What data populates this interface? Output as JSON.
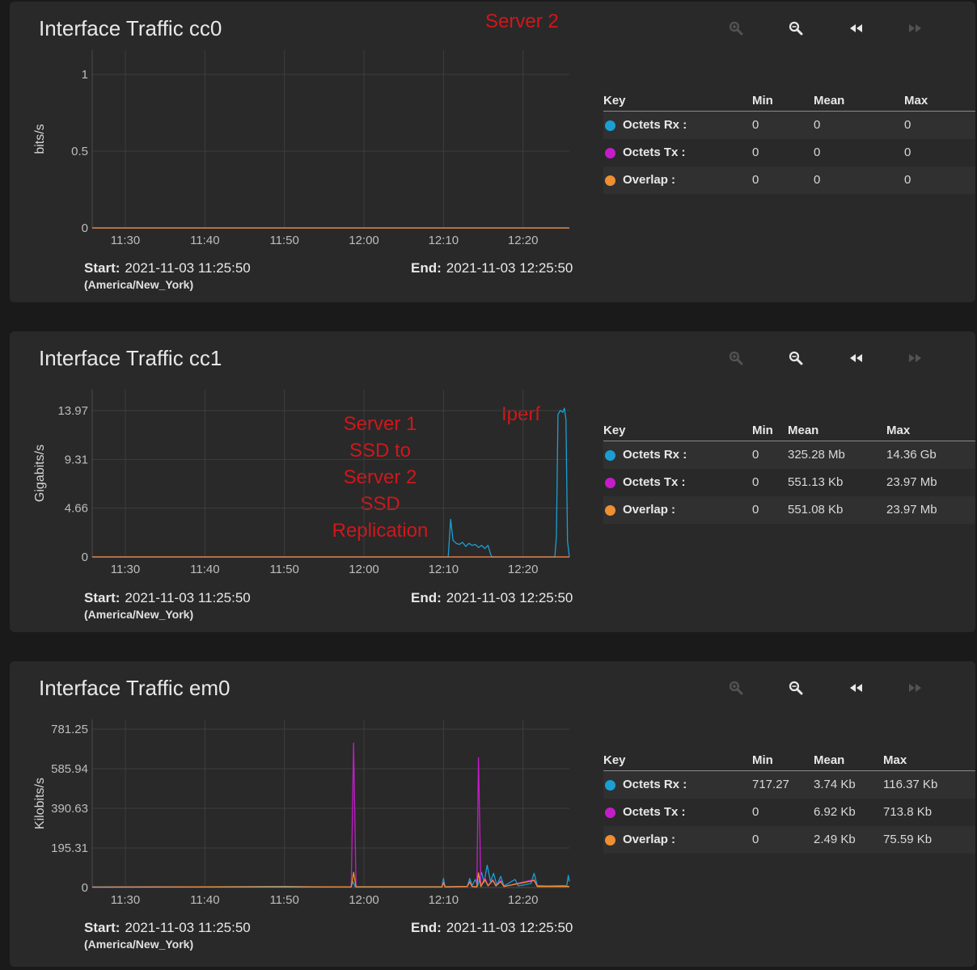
{
  "toolbar": {
    "icons": [
      "zoom-in-icon",
      "zoom-out-icon",
      "step-back-icon",
      "step-forward-icon"
    ]
  },
  "colors": {
    "card": "#292929",
    "rx": "#1a9fd4",
    "tx": "#c41cc9",
    "overlap": "#ef8f31",
    "annotation": "#d0171b"
  },
  "legend_header": {
    "key": "Key",
    "min": "Min",
    "mean": "Mean",
    "max": "Max"
  },
  "labels": {
    "start": "Start:",
    "end": "End:"
  },
  "charts": [
    {
      "title": "Interface Traffic cc0",
      "ylabel": "bits/s",
      "start": "2021-11-03 11:25:50",
      "timezone": "(America/New_York)",
      "end": "2021-11-03 12:25:50",
      "legend": [
        {
          "name": "Octets Rx :",
          "min": "0",
          "mean": "0",
          "max": "0"
        },
        {
          "name": "Octets Tx :",
          "min": "0",
          "mean": "0",
          "max": "0"
        },
        {
          "name": "Overlap :",
          "min": "0",
          "mean": "0",
          "max": "0"
        }
      ],
      "annotations": [
        "Server 2"
      ]
    },
    {
      "title": "Interface Traffic cc1",
      "ylabel": "Gigabits/s",
      "start": "2021-11-03 11:25:50",
      "timezone": "(America/New_York)",
      "end": "2021-11-03 12:25:50",
      "legend": [
        {
          "name": "Octets Rx :",
          "min": "0",
          "mean": "325.28 Mb",
          "max": "14.36 Gb"
        },
        {
          "name": "Octets Tx :",
          "min": "0",
          "mean": "551.13 Kb",
          "max": "23.97 Mb"
        },
        {
          "name": "Overlap :",
          "min": "0",
          "mean": "551.08 Kb",
          "max": "23.97 Mb"
        }
      ],
      "annotations": [
        "Server 1\nSSD to\nServer 2\nSSD\nReplication",
        "Iperf"
      ]
    },
    {
      "title": "Interface Traffic em0",
      "ylabel": "Kilobits/s",
      "start": "2021-11-03 11:25:50",
      "timezone": "(America/New_York)",
      "end": "2021-11-03 12:25:50",
      "legend": [
        {
          "name": "Octets Rx :",
          "min": "717.27",
          "mean": "3.74 Kb",
          "max": "116.37 Kb"
        },
        {
          "name": "Octets Tx :",
          "min": "0",
          "mean": "6.92 Kb",
          "max": "713.8 Kb"
        },
        {
          "name": "Overlap :",
          "min": "0",
          "mean": "2.49 Kb",
          "max": "75.59 Kb"
        }
      ],
      "annotations": []
    }
  ],
  "chart_data": [
    {
      "type": "line",
      "title": "Interface Traffic cc0",
      "ylabel": "bits/s",
      "ylim": [
        0,
        1
      ],
      "yticks": [
        0,
        0.5,
        1
      ],
      "ytick_labels": [
        "0",
        "0.5",
        "1"
      ],
      "xlim_minutes": [
        -4.17,
        55.83
      ],
      "xticks": [
        "11:30",
        "11:40",
        "11:50",
        "12:00",
        "12:10",
        "12:20"
      ],
      "grid": true,
      "series": [
        {
          "name": "Octets Rx",
          "color": "#1a9fd4",
          "points": [
            [
              -4.17,
              0
            ],
            [
              55.83,
              0
            ]
          ]
        },
        {
          "name": "Octets Tx",
          "color": "#c41cc9",
          "points": [
            [
              -4.17,
              0
            ],
            [
              55.83,
              0
            ]
          ]
        },
        {
          "name": "Overlap",
          "color": "#ef8f31",
          "points": [
            [
              -4.17,
              0
            ],
            [
              55.83,
              0
            ]
          ]
        }
      ]
    },
    {
      "type": "line",
      "title": "Interface Traffic cc1",
      "ylabel": "Gigabits/s",
      "ylim": [
        0,
        13.97
      ],
      "yticks": [
        0,
        4.66,
        9.31,
        13.97
      ],
      "ytick_labels": [
        "0",
        "4.66",
        "9.31",
        "13.97"
      ],
      "xlim_minutes": [
        -4.17,
        55.83
      ],
      "xticks": [
        "11:30",
        "11:40",
        "11:50",
        "12:00",
        "12:10",
        "12:20"
      ],
      "grid": true,
      "series": [
        {
          "name": "Octets Rx",
          "color": "#1a9fd4",
          "points": [
            [
              -4.17,
              0
            ],
            [
              40.6,
              0
            ],
            [
              40.9,
              3.6
            ],
            [
              41.2,
              1.6
            ],
            [
              41.6,
              1.3
            ],
            [
              42.0,
              1.2
            ],
            [
              42.4,
              1.4
            ],
            [
              42.8,
              1.0
            ],
            [
              43.2,
              1.3
            ],
            [
              43.6,
              1.1
            ],
            [
              44.0,
              1.2
            ],
            [
              44.4,
              0.9
            ],
            [
              44.8,
              1.1
            ],
            [
              45.2,
              0.8
            ],
            [
              45.6,
              1.1
            ],
            [
              45.9,
              0.3
            ],
            [
              46.1,
              0
            ],
            [
              54.0,
              0
            ],
            [
              54.2,
              2.0
            ],
            [
              54.4,
              13.6
            ],
            [
              54.7,
              14.0
            ],
            [
              55.0,
              13.8
            ],
            [
              55.2,
              14.2
            ],
            [
              55.4,
              13.1
            ],
            [
              55.6,
              1.5
            ],
            [
              55.83,
              0
            ]
          ]
        },
        {
          "name": "Octets Tx",
          "color": "#c41cc9",
          "points": [
            [
              -4.17,
              0
            ],
            [
              55.83,
              0
            ]
          ]
        },
        {
          "name": "Overlap",
          "color": "#ef8f31",
          "points": [
            [
              -4.17,
              0
            ],
            [
              55.83,
              0
            ]
          ]
        }
      ]
    },
    {
      "type": "line",
      "title": "Interface Traffic em0",
      "ylabel": "Kilobits/s",
      "ylim": [
        0,
        781.25
      ],
      "yticks": [
        0,
        195.31,
        390.63,
        585.94,
        781.25
      ],
      "ytick_labels": [
        "0",
        "195.31",
        "390.63",
        "585.94",
        "781.25"
      ],
      "xlim_minutes": [
        -4.17,
        55.83
      ],
      "xticks": [
        "11:30",
        "11:40",
        "11:50",
        "12:00",
        "12:10",
        "12:20"
      ],
      "grid": true,
      "series": [
        {
          "name": "Octets Rx",
          "color": "#1a9fd4",
          "points": [
            [
              -4.17,
              3
            ],
            [
              3,
              4
            ],
            [
              10,
              3
            ],
            [
              20,
              5
            ],
            [
              25,
              3
            ],
            [
              28.4,
              4
            ],
            [
              28.6,
              30
            ],
            [
              28.9,
              4
            ],
            [
              35,
              4
            ],
            [
              39.8,
              4
            ],
            [
              40.0,
              45
            ],
            [
              40.2,
              4
            ],
            [
              43.0,
              6
            ],
            [
              43.3,
              45
            ],
            [
              43.6,
              10
            ],
            [
              44.0,
              40
            ],
            [
              44.3,
              8
            ],
            [
              44.8,
              75
            ],
            [
              45.1,
              25
            ],
            [
              45.5,
              110
            ],
            [
              45.9,
              30
            ],
            [
              46.3,
              70
            ],
            [
              46.7,
              12
            ],
            [
              47.2,
              55
            ],
            [
              47.6,
              8
            ],
            [
              49.0,
              40
            ],
            [
              49.4,
              8
            ],
            [
              51.0,
              20
            ],
            [
              51.4,
              70
            ],
            [
              51.8,
              10
            ],
            [
              53.0,
              8
            ],
            [
              55.5,
              10
            ],
            [
              55.7,
              60
            ],
            [
              55.83,
              30
            ]
          ]
        },
        {
          "name": "Octets Tx",
          "color": "#c41cc9",
          "points": [
            [
              -4.17,
              2
            ],
            [
              10,
              3
            ],
            [
              25,
              3
            ],
            [
              28.4,
              3
            ],
            [
              28.7,
              713
            ],
            [
              29.0,
              3
            ],
            [
              35,
              3
            ],
            [
              39.8,
              3
            ],
            [
              40.0,
              30
            ],
            [
              40.2,
              3
            ],
            [
              43.0,
              5
            ],
            [
              43.3,
              30
            ],
            [
              43.6,
              5
            ],
            [
              44.2,
              3
            ],
            [
              44.4,
              640
            ],
            [
              44.7,
              5
            ],
            [
              45.2,
              50
            ],
            [
              45.6,
              10
            ],
            [
              46.2,
              40
            ],
            [
              46.6,
              8
            ],
            [
              47.2,
              35
            ],
            [
              47.6,
              5
            ],
            [
              51.4,
              40
            ],
            [
              51.8,
              5
            ],
            [
              55.83,
              5
            ]
          ]
        },
        {
          "name": "Overlap",
          "color": "#ef8f31",
          "points": [
            [
              -4.17,
              2
            ],
            [
              10,
              3
            ],
            [
              25,
              3
            ],
            [
              28.4,
              3
            ],
            [
              28.7,
              75
            ],
            [
              29.0,
              3
            ],
            [
              35,
              3
            ],
            [
              39.8,
              3
            ],
            [
              40.0,
              25
            ],
            [
              40.2,
              3
            ],
            [
              43.0,
              5
            ],
            [
              43.3,
              28
            ],
            [
              43.6,
              5
            ],
            [
              44.2,
              3
            ],
            [
              44.4,
              72
            ],
            [
              44.7,
              5
            ],
            [
              45.2,
              40
            ],
            [
              45.6,
              8
            ],
            [
              46.2,
              35
            ],
            [
              46.6,
              8
            ],
            [
              47.2,
              30
            ],
            [
              47.6,
              5
            ],
            [
              51.4,
              35
            ],
            [
              51.8,
              5
            ],
            [
              55.83,
              5
            ]
          ]
        }
      ]
    }
  ]
}
